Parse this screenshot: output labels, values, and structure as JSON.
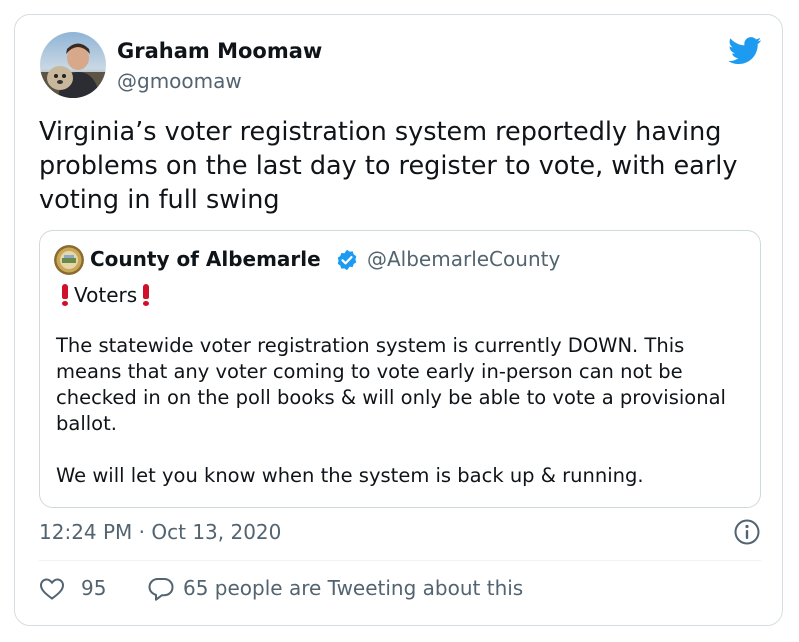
{
  "tweet": {
    "author": {
      "name": "Graham Moomaw",
      "handle": "@gmoomaw"
    },
    "text": "Virginia’s voter registration system reportedly having problems on the last day to register to vote, with early voting in full swing",
    "timestamp": "12:24 PM · Oct 13, 2020",
    "likes": "95",
    "tweeting_text": "65 people are Tweeting about this"
  },
  "quoted_tweet": {
    "author": {
      "name": "County of Albemarle",
      "handle": "@AlbemarleCounty",
      "verified": true
    },
    "title": "Voters",
    "paragraphs": [
      "The statewide voter registration system is currently DOWN. This means that any voter coming to vote early in-person can not be checked in on the poll books & will only be able to vote a provisional ballot.",
      "We will let you know when the system is back up & running."
    ]
  },
  "icons": {
    "brand": "twitter-bird-icon",
    "verified": "verified-badge-icon",
    "info": "info-icon",
    "like": "heart-icon",
    "reply": "reply-icon",
    "emphasis": "exclamation-icon"
  },
  "colors": {
    "twitter_blue": "#1d9bf0",
    "text_primary": "#0f1419",
    "text_secondary": "#536471",
    "border": "#d6dde2",
    "alert_red": "#d0102a"
  }
}
